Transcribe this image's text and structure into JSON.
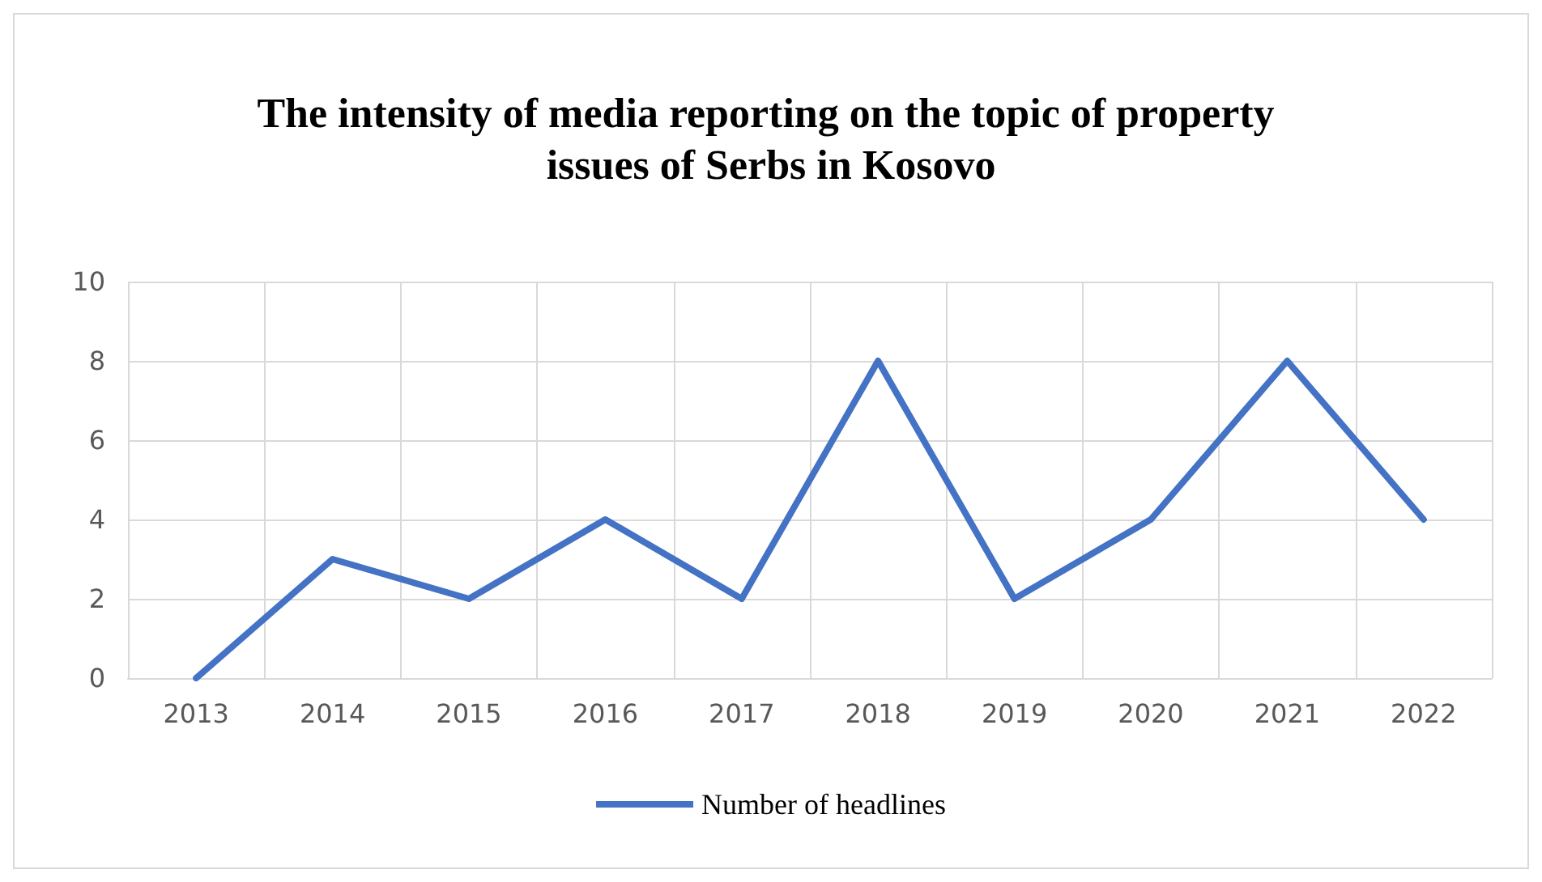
{
  "chart_data": {
    "type": "line",
    "title": "The intensity of media reporting on the topic of property issues of Serbs in Kosovo",
    "categories": [
      "2013",
      "2014",
      "2015",
      "2016",
      "2017",
      "2018",
      "2019",
      "2020",
      "2021",
      "2022"
    ],
    "series": [
      {
        "name": "Number of headlines",
        "color": "#4472c4",
        "values": [
          0,
          3,
          2,
          4,
          2,
          8,
          2,
          4,
          8,
          4
        ]
      }
    ],
    "ylim": [
      0,
      10
    ],
    "yticks": [
      0,
      2,
      4,
      6,
      8,
      10
    ],
    "grid": true,
    "legend": "bottom",
    "marker": "none",
    "line_style": "solid"
  }
}
